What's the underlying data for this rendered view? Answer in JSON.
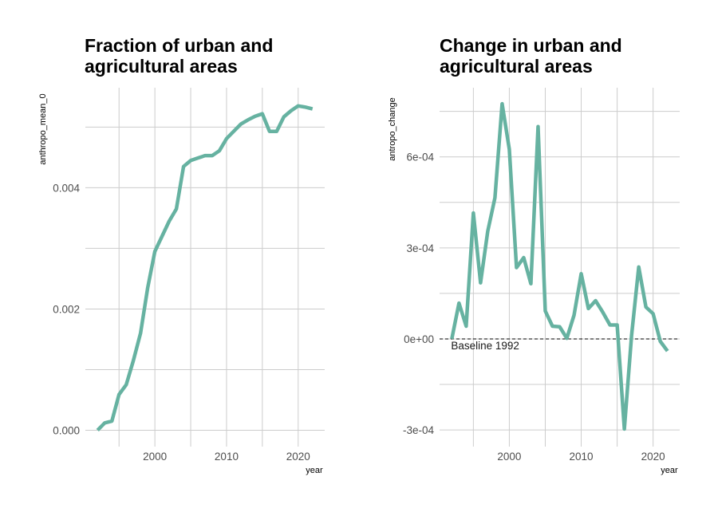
{
  "chart_data": [
    {
      "type": "line",
      "title": "Fraction of urban and\nagricultural areas",
      "xlabel": "year",
      "ylabel": "anthropo_mean_0",
      "xlim": [
        1990.3,
        2023.7
      ],
      "ylim": [
        -0.00027,
        0.00565
      ],
      "x_ticks": [
        2000,
        2010,
        2020
      ],
      "x_tick_labels": [
        "2000",
        "2010",
        "2020"
      ],
      "y_ticks": [
        0.0,
        0.002,
        0.004
      ],
      "y_tick_labels": [
        "0.000",
        "0.002",
        "0.004"
      ],
      "grid": true,
      "line_color": "#66b2a1",
      "series": [
        {
          "x": [
            1992,
            1993,
            1994,
            1995,
            1996,
            1997,
            1998,
            1999,
            2000,
            2001,
            2002,
            2003,
            2004,
            2005,
            2006,
            2007,
            2008,
            2009,
            2010,
            2011,
            2012,
            2013,
            2014,
            2015,
            2016,
            2017,
            2018,
            2019,
            2020,
            2021,
            2022
          ],
          "values": [
            0.0,
            0.00012,
            0.00015,
            0.00059,
            0.00075,
            0.00115,
            0.0016,
            0.00235,
            0.00295,
            0.0032,
            0.00345,
            0.00365,
            0.00435,
            0.00445,
            0.00449,
            0.00453,
            0.00453,
            0.00461,
            0.00481,
            0.00493,
            0.00505,
            0.00512,
            0.00518,
            0.00522,
            0.00493,
            0.00493,
            0.00517,
            0.00527,
            0.00535,
            0.00533,
            0.0053
          ]
        }
      ]
    },
    {
      "type": "line",
      "title": "Change in urban and\nagricultural areas",
      "xlabel": "year",
      "ylabel": "antropo_change",
      "xlim": [
        1990.3,
        2023.7
      ],
      "ylim": [
        -0.000355,
        0.000828
      ],
      "x_ticks": [
        2000,
        2010,
        2020
      ],
      "x_tick_labels": [
        "2000",
        "2010",
        "2020"
      ],
      "y_ticks": [
        -0.0003,
        0.0,
        0.0003,
        0.0006
      ],
      "y_tick_labels": [
        "-3e-04",
        "0e+00",
        "3e-04",
        "6e-04"
      ],
      "grid": true,
      "line_color": "#66b2a1",
      "reference_line": {
        "y": 0,
        "style": "dashed",
        "label": "Baseline 1992"
      },
      "series": [
        {
          "x": [
            1992,
            1993,
            1994,
            1995,
            1996,
            1997,
            1998,
            1999,
            2000,
            2001,
            2002,
            2003,
            2004,
            2005,
            2006,
            2007,
            2008,
            2009,
            2010,
            2011,
            2012,
            2013,
            2014,
            2015,
            2016,
            2017,
            2018,
            2019,
            2020,
            2021,
            2022
          ],
          "values": [
            0.0,
            0.000118,
            4.2e-05,
            0.000415,
            0.000185,
            0.000355,
            0.000465,
            0.000775,
            0.000625,
            0.000235,
            0.000268,
            0.000182,
            0.0007,
            9.2e-05,
            4.2e-05,
            4e-05,
            2e-06,
            7.8e-05,
            0.000215,
            0.0001,
            0.000126,
            8.8e-05,
            4.6e-05,
            4.6e-05,
            -0.000297,
            1e-05,
            0.000237,
            0.000105,
            8.3e-05,
            -8e-06,
            -4e-05
          ]
        }
      ]
    }
  ]
}
